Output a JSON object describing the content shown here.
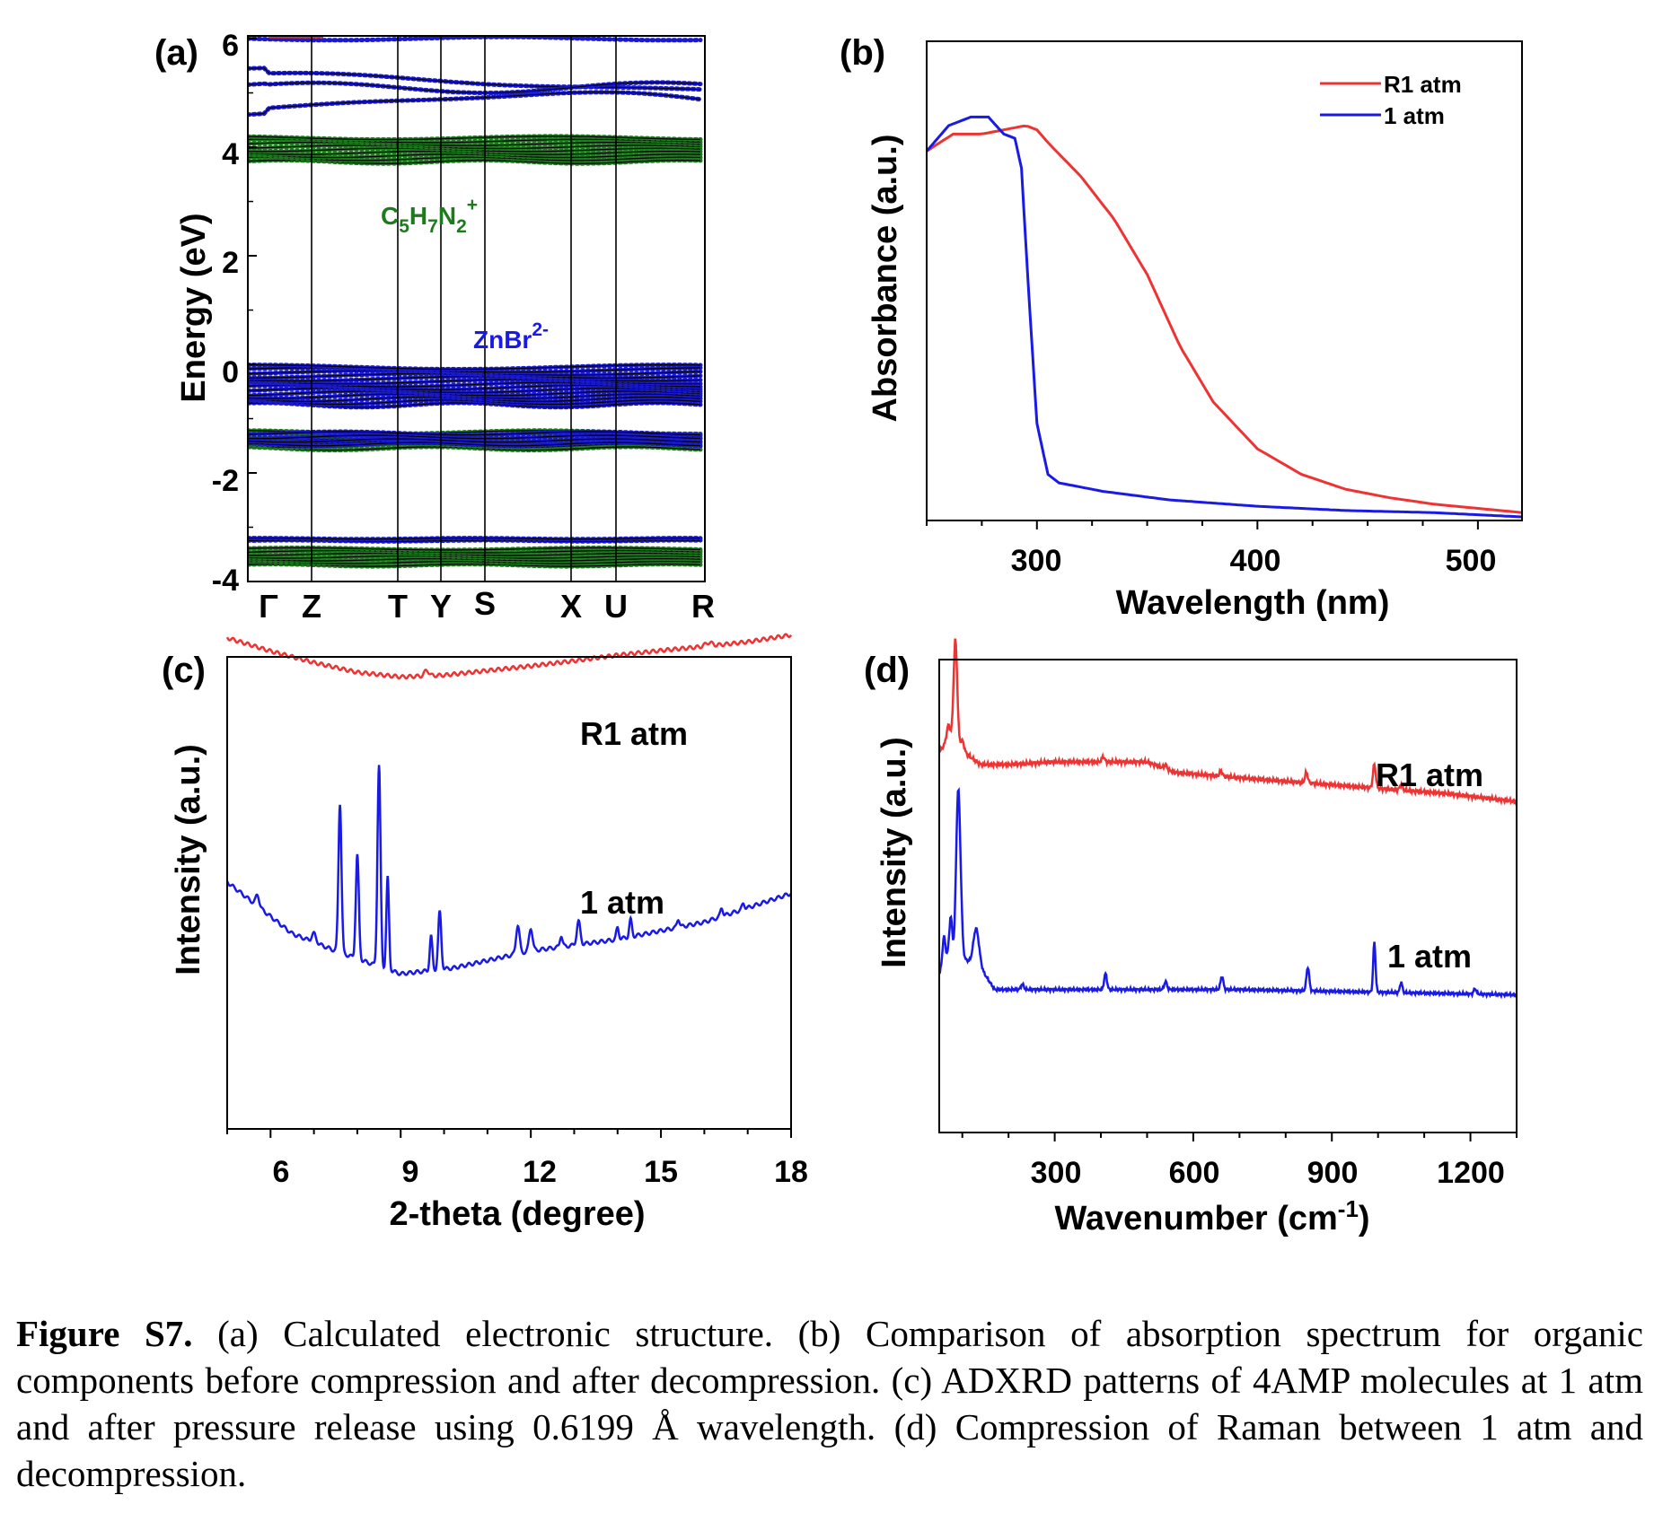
{
  "panels": {
    "a": {
      "letter": "(a)",
      "ylabel": "Energy (eV)",
      "yticks": [
        "6",
        "4",
        "2",
        "0",
        "-2",
        "-4"
      ],
      "kpoints": [
        "Γ",
        "Z",
        "T",
        "Y",
        "S",
        "X",
        "U",
        "R"
      ],
      "annotation_organic": "C5H7N2+",
      "annotation_inorganic": "ZnBr2-"
    },
    "b": {
      "letter": "(b)",
      "xlabel": "Wavelength (nm)",
      "ylabel": "Absorbance (a.u.)",
      "xticks": [
        "300",
        "400",
        "500"
      ],
      "legend": [
        "R1 atm",
        "1 atm"
      ]
    },
    "c": {
      "letter": "(c)",
      "xlabel": "2-theta (degree)",
      "ylabel": "Intensity (a.u.)",
      "xticks": [
        "6",
        "9",
        "12",
        "15",
        "18"
      ],
      "label_r1": "R1 atm",
      "label_1": "1 atm"
    },
    "d": {
      "letter": "(d)",
      "xlabel": "Wavenumber (cm-1)",
      "ylabel": "Intensity (a.u.)",
      "xticks": [
        "300",
        "600",
        "900",
        "1200"
      ],
      "label_r1": "R1 atm",
      "label_1": "1 atm"
    }
  },
  "caption": {
    "title": "Figure S7.",
    "text": " (a) Calculated electronic structure. (b) Comparison of absorption spectrum for organic components before compression and after decompression. (c) ADXRD patterns of 4AMP molecules at 1 atm and after pressure release using 0.6199 Å wavelength. (d) Compression of Raman between 1 atm and decompression."
  },
  "colors": {
    "red": "#ee3333",
    "blue": "#1a1ae6",
    "green": "#1e7a1e",
    "bandblue": "#1a1acc"
  },
  "chart_data": [
    {
      "type": "line",
      "panel": "a",
      "ylabel": "Energy (eV)",
      "ylim": [
        -4,
        6
      ],
      "x_categories": [
        "Γ",
        "Z",
        "T",
        "Y",
        "S",
        "X",
        "U",
        "R"
      ],
      "series": [
        {
          "name": "C5H7N2+",
          "energy_bands_eV": [
            [
              3.7,
              4.2
            ],
            [
              -1.6,
              -1.25
            ],
            [
              -3.7,
              -3.35
            ]
          ]
        },
        {
          "name": "ZnBr2-",
          "energy_bands_eV": [
            [
              -0.75,
              -0.05
            ],
            [
              -1.55,
              -1.25
            ],
            [
              -3.3,
              -3.2
            ],
            [
              4.75,
              5.25
            ],
            [
              6.0,
              6.1
            ]
          ]
        }
      ]
    },
    {
      "type": "line",
      "panel": "b",
      "xlabel": "Wavelength (nm)",
      "ylabel": "Absorbance (a.u.)",
      "xlim": [
        250,
        520
      ],
      "ylim": [
        0,
        1.0
      ],
      "series": [
        {
          "name": "R1 atm",
          "x": [
            250,
            262,
            275,
            285,
            295,
            300,
            305,
            320,
            335,
            350,
            365,
            380,
            400,
            420,
            440,
            460,
            480,
            500,
            520
          ],
          "y": [
            0.86,
            0.9,
            0.9,
            0.91,
            0.92,
            0.91,
            0.88,
            0.8,
            0.7,
            0.57,
            0.4,
            0.27,
            0.16,
            0.1,
            0.065,
            0.045,
            0.03,
            0.02,
            0.01
          ]
        },
        {
          "name": "1 atm",
          "x": [
            250,
            260,
            270,
            278,
            285,
            290,
            293,
            296,
            300,
            305,
            310,
            330,
            360,
            400,
            440,
            480,
            520
          ],
          "y": [
            0.86,
            0.92,
            0.94,
            0.94,
            0.9,
            0.89,
            0.82,
            0.55,
            0.22,
            0.1,
            0.08,
            0.06,
            0.04,
            0.025,
            0.015,
            0.01,
            0.0
          ]
        }
      ]
    },
    {
      "type": "line",
      "panel": "c",
      "xlabel": "2-theta (degree)",
      "ylabel": "Intensity (a.u.)",
      "xlim": [
        5,
        18
      ],
      "series": [
        {
          "name": "R1 atm",
          "x": [
            5,
            6,
            7,
            8,
            9,
            9.6,
            9.8,
            10,
            11,
            12,
            13,
            14,
            15,
            16,
            16.2,
            17,
            18
          ],
          "y": [
            0.86,
            0.83,
            0.8,
            0.78,
            0.77,
            0.78,
            0.77,
            0.78,
            0.79,
            0.8,
            0.81,
            0.82,
            0.83,
            0.84,
            0.845,
            0.84,
            0.86
          ]
        },
        {
          "name": "1 atm",
          "x": [
            5,
            5.7,
            6.5,
            7.0,
            7.6,
            8.0,
            8.5,
            8.7,
            9.0,
            9.7,
            9.9,
            10.5,
            11.7,
            12.0,
            13.1,
            14.3,
            15.0,
            16.5,
            18
          ],
          "y": [
            0.43,
            0.4,
            0.33,
            0.31,
            0.56,
            0.48,
            0.63,
            0.45,
            0.27,
            0.3,
            0.4,
            0.28,
            0.32,
            0.31,
            0.35,
            0.35,
            0.34,
            0.37,
            0.41
          ]
        }
      ]
    },
    {
      "type": "line",
      "panel": "d",
      "xlabel": "Wavenumber (cm-1)",
      "ylabel": "Intensity (a.u.)",
      "xlim": [
        50,
        1300
      ],
      "series": [
        {
          "name": "R1 atm",
          "x": [
            50,
            85,
            100,
            130,
            200,
            300,
            400,
            405,
            500,
            550,
            660,
            800,
            845,
            900,
            990,
            995,
            1050,
            1200,
            1300
          ],
          "y": [
            0.72,
            0.92,
            0.73,
            0.7,
            0.69,
            0.7,
            0.7,
            0.71,
            0.7,
            0.68,
            0.67,
            0.66,
            0.68,
            0.65,
            0.7,
            0.65,
            0.64,
            0.63,
            0.62
          ]
        },
        {
          "name": "1 atm",
          "x": [
            50,
            70,
            82,
            90,
            110,
            125,
            150,
            200,
            405,
            410,
            540,
            660,
            850,
            990,
            995,
            1050,
            1200,
            1300
          ],
          "y": [
            0.3,
            0.35,
            0.55,
            0.4,
            0.32,
            0.38,
            0.28,
            0.27,
            0.3,
            0.27,
            0.28,
            0.28,
            0.32,
            0.37,
            0.27,
            0.27,
            0.26,
            0.26
          ]
        }
      ]
    }
  ]
}
